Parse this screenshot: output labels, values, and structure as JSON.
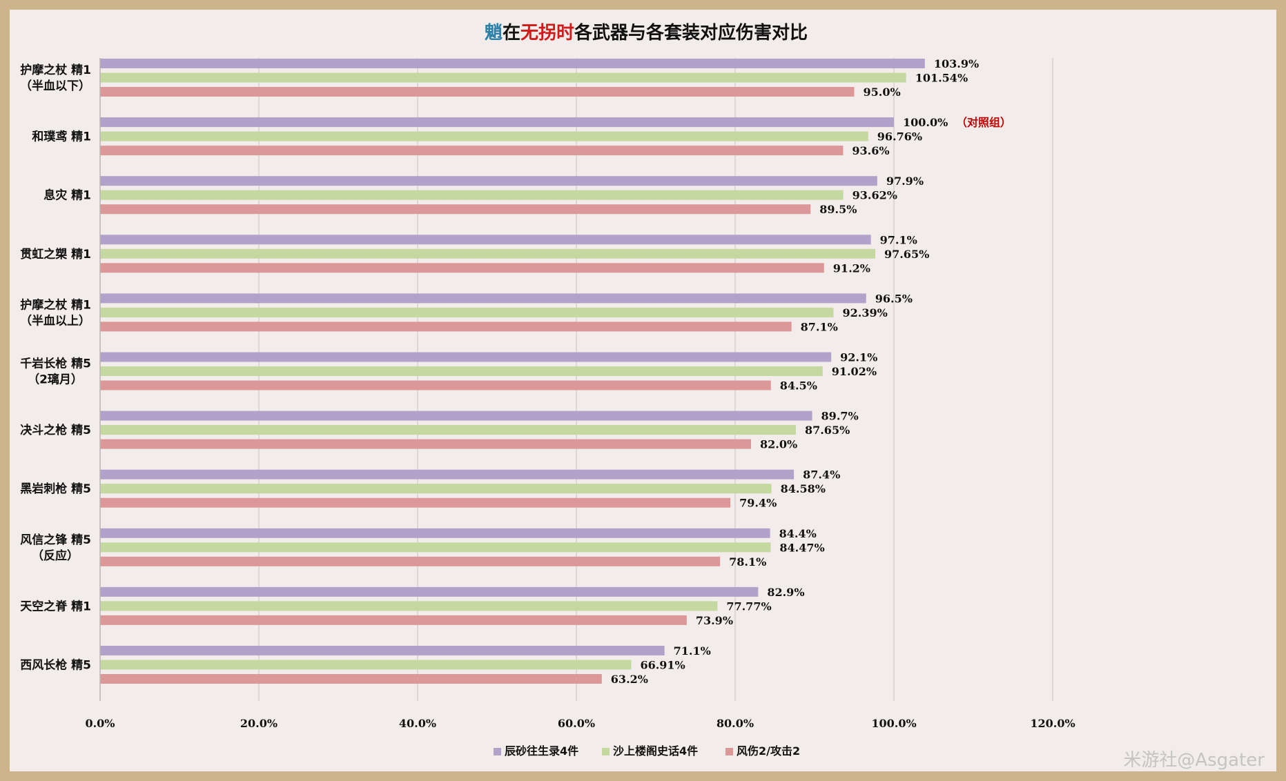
{
  "chart_data": {
    "type": "bar",
    "orientation": "horizontal",
    "title_parts": [
      {
        "text": "魈",
        "color": "#2e7fa6"
      },
      {
        "text": "在",
        "color": "#111111"
      },
      {
        "text": "无拐时",
        "color": "#d11a1a"
      },
      {
        "text": "各武器与各套装对应伤害对比",
        "color": "#111111"
      }
    ],
    "categories": [
      [
        "护摩之杖 精1",
        "（半血以下）"
      ],
      [
        "和璞鸢 精1"
      ],
      [
        "息灾 精1"
      ],
      [
        "贯虹之槊 精1"
      ],
      [
        "护摩之杖 精1",
        "（半血以上）"
      ],
      [
        "千岩长枪 精5",
        "（2璃月）"
      ],
      [
        "决斗之枪 精5"
      ],
      [
        "黑岩刺枪 精5"
      ],
      [
        "风信之锋 精5",
        "（反应）"
      ],
      [
        "天空之脊 精1"
      ],
      [
        "西风长枪 精5"
      ]
    ],
    "series": [
      {
        "name": "辰砂往生录4件",
        "color": "#b2a2c9",
        "values": [
          103.9,
          100.0,
          97.9,
          97.1,
          96.5,
          92.1,
          89.7,
          87.4,
          84.4,
          82.9,
          71.1
        ],
        "labels": [
          "103.9%",
          "100.0%",
          "97.9%",
          "97.1%",
          "96.5%",
          "92.1%",
          "89.7%",
          "87.4%",
          "84.4%",
          "82.9%",
          "71.1%"
        ]
      },
      {
        "name": "沙上楼阁史话4件",
        "color": "#c5d8a0",
        "values": [
          101.54,
          96.76,
          93.62,
          97.65,
          92.39,
          91.02,
          87.65,
          84.58,
          84.47,
          77.77,
          66.91
        ],
        "labels": [
          "101.54%",
          "96.76%",
          "93.62%",
          "97.65%",
          "92.39%",
          "91.02%",
          "87.65%",
          "84.58%",
          "84.47%",
          "77.77%",
          "66.91%"
        ]
      },
      {
        "name": "风伤2/攻击2",
        "color": "#dc9898",
        "values": [
          95.0,
          93.6,
          89.5,
          91.2,
          87.1,
          84.5,
          82.0,
          79.4,
          78.1,
          73.9,
          63.2
        ],
        "labels": [
          "95.0%",
          "93.6%",
          "89.5%",
          "91.2%",
          "87.1%",
          "84.5%",
          "82.0%",
          "79.4%",
          "78.1%",
          "73.9%",
          "63.2%"
        ]
      }
    ],
    "annotation": {
      "category_index": 1,
      "series_index": 0,
      "text": "（对照组）",
      "color": "#c00000"
    },
    "xlim": [
      0,
      120
    ],
    "xticks": [
      0,
      20,
      40,
      60,
      80,
      100,
      120
    ],
    "xtick_labels": [
      "0.0%",
      "20.0%",
      "40.0%",
      "60.0%",
      "80.0%",
      "100.0%",
      "120.0%"
    ],
    "grid": "vertical",
    "legend_position": "bottom-center",
    "watermark": "米游社@Asgater",
    "background_color": "#f2edea",
    "frame_color": "#cdb48a"
  }
}
